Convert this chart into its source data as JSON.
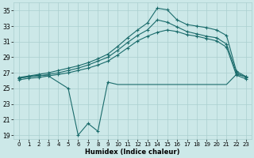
{
  "xlabel": "Humidex (Indice chaleur)",
  "bg_color": "#cce8e8",
  "line_color": "#1a6b6b",
  "grid_color": "#aacfcf",
  "xlim": [
    -0.5,
    23.5
  ],
  "ylim": [
    18.5,
    36.0
  ],
  "yticks": [
    19,
    21,
    23,
    25,
    27,
    29,
    31,
    33,
    35
  ],
  "xticks": [
    0,
    1,
    2,
    3,
    4,
    5,
    6,
    7,
    8,
    9,
    10,
    11,
    12,
    13,
    14,
    15,
    16,
    17,
    18,
    19,
    20,
    21,
    22,
    23
  ],
  "s1x": [
    0,
    1,
    2,
    3,
    4,
    5,
    6,
    7,
    8,
    9,
    10,
    11,
    12,
    13,
    14,
    15,
    16,
    17,
    18,
    19,
    20,
    21,
    22,
    23
  ],
  "s1y": [
    26.4,
    26.6,
    26.8,
    27.0,
    27.3,
    27.6,
    27.9,
    28.3,
    28.8,
    29.4,
    30.4,
    31.5,
    32.5,
    33.4,
    35.3,
    35.1,
    33.8,
    33.2,
    33.0,
    32.8,
    32.5,
    31.8,
    27.2,
    26.5
  ],
  "s2x": [
    0,
    1,
    2,
    3,
    4,
    5,
    6,
    7,
    8,
    9,
    10,
    11,
    12,
    13,
    14,
    15,
    16,
    17,
    18,
    19,
    20,
    21,
    22,
    23
  ],
  "s2y": [
    26.3,
    26.5,
    26.6,
    26.8,
    27.0,
    27.3,
    27.6,
    28.0,
    28.5,
    29.0,
    29.9,
    30.9,
    31.8,
    32.5,
    33.8,
    33.5,
    32.9,
    32.3,
    32.0,
    31.7,
    31.5,
    30.7,
    27.0,
    26.4
  ],
  "s3x": [
    0,
    1,
    2,
    3,
    4,
    5,
    6,
    7,
    8,
    9,
    10,
    11,
    12,
    13,
    14,
    15,
    16,
    17,
    18,
    19,
    20,
    21,
    22,
    23
  ],
  "s3y": [
    26.1,
    26.3,
    26.4,
    26.6,
    26.8,
    27.0,
    27.3,
    27.6,
    28.0,
    28.5,
    29.3,
    30.2,
    31.1,
    31.7,
    32.2,
    32.5,
    32.3,
    31.9,
    31.7,
    31.4,
    31.1,
    30.3,
    26.7,
    26.2
  ],
  "s4x": [
    0,
    1,
    2,
    3,
    5,
    6,
    7,
    8,
    9,
    10,
    11,
    12,
    13,
    14,
    15,
    16,
    17,
    18,
    19,
    20,
    21,
    22,
    23
  ],
  "s4y": [
    26.3,
    26.5,
    26.7,
    26.6,
    25.0,
    19.0,
    20.5,
    19.5,
    25.8,
    25.5,
    25.5,
    25.5,
    25.5,
    25.5,
    25.5,
    25.5,
    25.5,
    25.5,
    25.5,
    25.5,
    25.5,
    26.8,
    26.5
  ],
  "s4_marker_x": [
    0,
    1,
    2,
    3,
    5,
    6,
    7,
    8,
    9,
    22,
    23
  ],
  "s4_marker_y": [
    26.3,
    26.5,
    26.7,
    26.6,
    25.0,
    19.0,
    20.5,
    19.5,
    25.8,
    26.8,
    26.5
  ]
}
